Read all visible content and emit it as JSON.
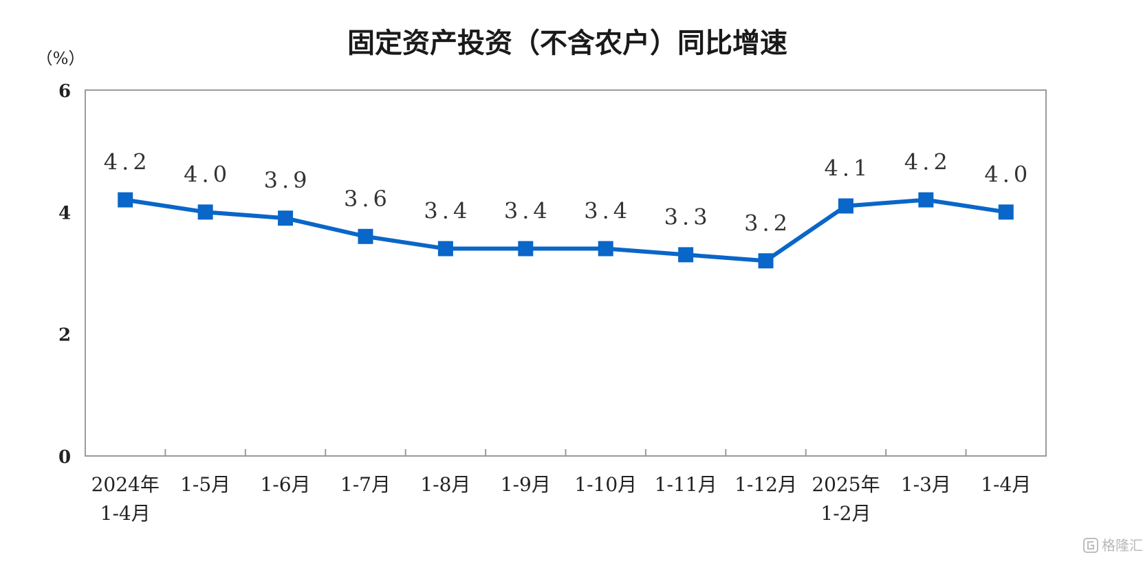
{
  "chart_data": {
    "type": "line",
    "title": "固定资产投资（不含农户）同比增速",
    "unit_label": "（%）",
    "ylim": [
      0,
      6
    ],
    "y_ticks": [
      "0",
      "2",
      "4",
      "6"
    ],
    "categories": [
      [
        "2024年",
        "1-4月"
      ],
      [
        "1-5月"
      ],
      [
        "1-6月"
      ],
      [
        "1-7月"
      ],
      [
        "1-8月"
      ],
      [
        "1-9月"
      ],
      [
        "1-10月"
      ],
      [
        "1-11月"
      ],
      [
        "1-12月"
      ],
      [
        "2025年",
        "1-2月"
      ],
      [
        "1-3月"
      ],
      [
        "1-4月"
      ]
    ],
    "values": [
      4.2,
      4.0,
      3.9,
      3.6,
      3.4,
      3.4,
      3.4,
      3.3,
      3.2,
      4.1,
      4.2,
      4.0
    ],
    "data_labels": [
      "4.2",
      "4.0",
      "3.9",
      "3.6",
      "3.4",
      "3.4",
      "3.4",
      "3.3",
      "3.2",
      "4.1",
      "4.2",
      "4.0"
    ],
    "series_color": "#0a66c8",
    "axis_color": "#9a9a9a",
    "grid": false,
    "legend": false
  },
  "watermark": {
    "text": "格隆汇"
  }
}
